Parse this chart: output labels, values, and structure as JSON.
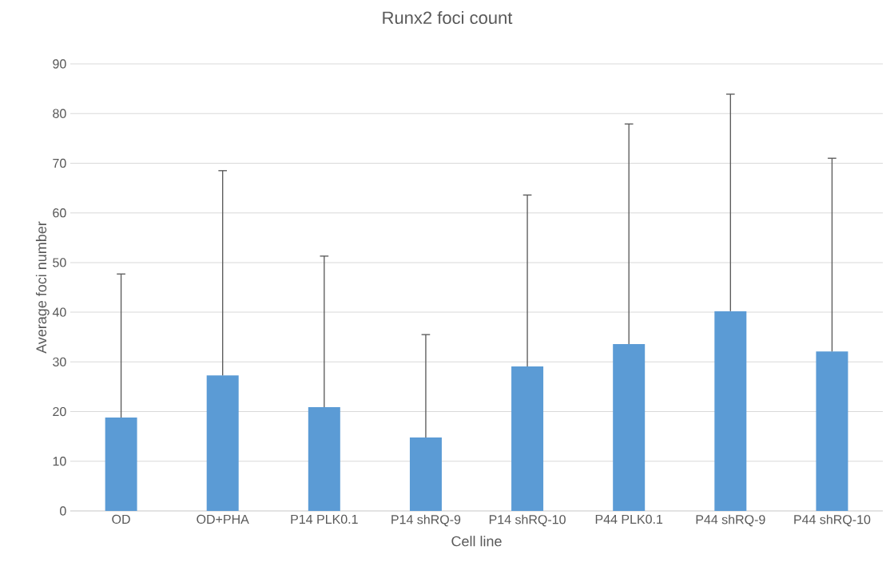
{
  "chart_data": {
    "type": "bar",
    "title": "Runx2 foci count",
    "xlabel": "Cell line",
    "ylabel": "Average foci number",
    "categories": [
      "OD",
      "OD+PHA",
      "P14 PLK0.1",
      "P14 shRQ-9",
      "P14 shRQ-10",
      "P44 PLK0.1",
      "P44 shRQ-9",
      "P44 shRQ-10"
    ],
    "values": [
      18.8,
      27.3,
      20.9,
      14.8,
      29.1,
      33.6,
      40.2,
      32.1
    ],
    "errors": [
      [
        18.8,
        47.7
      ],
      [
        27.3,
        68.5
      ],
      [
        20.9,
        51.3
      ],
      [
        14.8,
        35.5
      ],
      [
        29.1,
        63.6
      ],
      [
        33.6,
        77.9
      ],
      [
        40.2,
        83.9
      ],
      [
        32.1,
        71.0
      ]
    ],
    "color": "#5b9bd5",
    "ylim": [
      0,
      90
    ],
    "yticks": [
      0,
      10,
      20,
      30,
      40,
      50,
      60,
      70,
      80,
      90
    ],
    "grid": "y"
  }
}
